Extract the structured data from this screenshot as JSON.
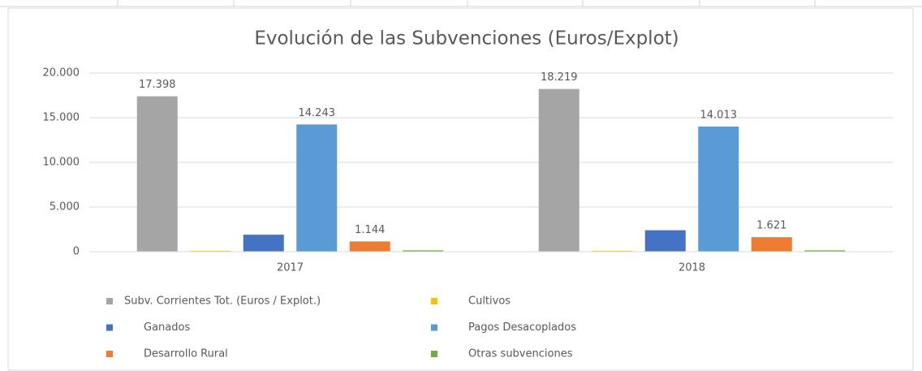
{
  "chart_data": {
    "type": "bar",
    "title": "Evolución de las Subvenciones (Euros/Explot)",
    "categories": [
      "2017",
      "2018"
    ],
    "series": [
      {
        "name": "Subv. Corrientes Tot.  (Euros / Explot.)",
        "color": "#a5a5a5",
        "values": [
          17398,
          18219
        ],
        "value_labels": [
          "17.398",
          "18.219"
        ]
      },
      {
        "name": "Cultivos",
        "color": "#ffc000",
        "values": [
          100,
          100
        ]
      },
      {
        "name": "Ganados",
        "color": "#4472c4",
        "values": [
          1900,
          2400
        ]
      },
      {
        "name": "Pagos Desacoplados",
        "color": "#5b9bd5",
        "values": [
          14243,
          14013
        ],
        "value_labels": [
          "14.243",
          "14.013"
        ]
      },
      {
        "name": "Desarrollo Rural",
        "color": "#ed7d31",
        "values": [
          1144,
          1621
        ],
        "value_labels": [
          "1.144",
          "1.621"
        ]
      },
      {
        "name": "Otras subvenciones",
        "color": "#70ad47",
        "values": [
          150,
          150
        ]
      }
    ],
    "ylim": [
      0,
      20000
    ],
    "yticks": [
      0,
      {
        "value": 5000,
        "label": "5.000"
      },
      {
        "value": 10000,
        "label": "10.000"
      },
      {
        "value": 15000,
        "label": "15.000"
      },
      {
        "value": 20000,
        "label": "20.000"
      }
    ],
    "grid": true,
    "legend": "bottom"
  }
}
